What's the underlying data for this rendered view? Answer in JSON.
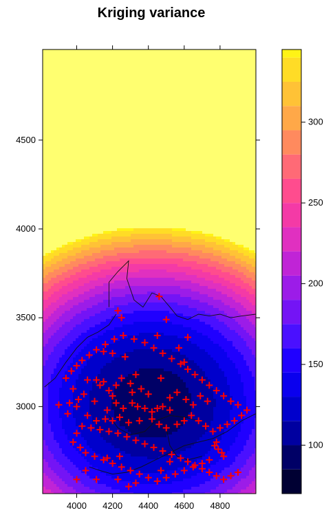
{
  "chart_data": {
    "type": "heatmap",
    "title": "Kriging variance",
    "xlabel": "",
    "ylabel": "",
    "xlim": [
      3810,
      5000
    ],
    "ylim": [
      2510,
      5010
    ],
    "x_ticks": [
      4000,
      4200,
      4400,
      4600,
      4800
    ],
    "y_ticks": [
      3000,
      3500,
      4000,
      4500
    ],
    "colorbar": {
      "ticks": [
        100,
        150,
        200,
        250,
        300
      ],
      "range": [
        70,
        345
      ],
      "levels": [
        70,
        85,
        100,
        115,
        130,
        145,
        160,
        175,
        190,
        205,
        220,
        235,
        250,
        265,
        280,
        295,
        310,
        325,
        340,
        345
      ],
      "colors": [
        "#000033",
        "#000066",
        "#0000A0",
        "#0000CC",
        "#0A00EE",
        "#2000FF",
        "#4A10FF",
        "#7414F5",
        "#9C1CE8",
        "#C024D6",
        "#E030C0",
        "#F43AA6",
        "#FF4C8E",
        "#FF6A76",
        "#FF8A5E",
        "#FFA848",
        "#FFC236",
        "#FFDC26",
        "#FFF316",
        "#FFFF70"
      ]
    },
    "sample_points_marker": "+",
    "sample_points_color": "#FF0000",
    "sample_points": [
      [
        4060,
        3150
      ],
      [
        4110,
        3150
      ],
      [
        4130,
        3120
      ],
      [
        4150,
        3140
      ],
      [
        4180,
        3090
      ],
      [
        4200,
        3060
      ],
      [
        4220,
        3120
      ],
      [
        4250,
        3160
      ],
      [
        4300,
        3130
      ],
      [
        4330,
        3180
      ],
      [
        4360,
        3100
      ],
      [
        4400,
        3070
      ],
      [
        4040,
        3070
      ],
      [
        4010,
        3040
      ],
      [
        4000,
        3000
      ],
      [
        4100,
        3030
      ],
      [
        4170,
        2980
      ],
      [
        4220,
        3020
      ],
      [
        4260,
        2990
      ],
      [
        4310,
        3020
      ],
      [
        4340,
        3000
      ],
      [
        4380,
        2990
      ],
      [
        4420,
        2970
      ],
      [
        4450,
        2990
      ],
      [
        4480,
        3000
      ],
      [
        4520,
        2980
      ],
      [
        4060,
        2950
      ],
      [
        4110,
        2920
      ],
      [
        4160,
        2930
      ],
      [
        4200,
        2920
      ],
      [
        4240,
        2940
      ],
      [
        4290,
        2910
      ],
      [
        4350,
        2920
      ],
      [
        4420,
        2930
      ],
      [
        4460,
        2900
      ],
      [
        4500,
        2880
      ],
      [
        4560,
        2900
      ],
      [
        4600,
        2920
      ],
      [
        4640,
        2950
      ],
      [
        4680,
        2920
      ],
      [
        4720,
        2890
      ],
      [
        4760,
        2860
      ],
      [
        4800,
        2880
      ],
      [
        4840,
        2900
      ],
      [
        4880,
        2920
      ],
      [
        4920,
        2950
      ],
      [
        4950,
        2980
      ],
      [
        4780,
        2800
      ],
      [
        4770,
        2780
      ],
      [
        4790,
        2760
      ],
      [
        4810,
        2740
      ],
      [
        4820,
        2720
      ],
      [
        4740,
        2700
      ],
      [
        4700,
        2680
      ],
      [
        4650,
        2660
      ],
      [
        4600,
        2640
      ],
      [
        4550,
        2620
      ],
      [
        4500,
        2600
      ],
      [
        4450,
        2580
      ],
      [
        4400,
        2600
      ],
      [
        4350,
        2620
      ],
      [
        4300,
        2640
      ],
      [
        4250,
        2660
      ],
      [
        4200,
        2680
      ],
      [
        4150,
        2700
      ],
      [
        4100,
        2720
      ],
      [
        4050,
        2740
      ],
      [
        4020,
        2770
      ],
      [
        3980,
        2800
      ],
      [
        4000,
        2850
      ],
      [
        4030,
        2890
      ],
      [
        4080,
        2880
      ],
      [
        4130,
        2870
      ],
      [
        4180,
        2860
      ],
      [
        4230,
        2850
      ],
      [
        4280,
        2830
      ],
      [
        4330,
        2810
      ],
      [
        4380,
        2790
      ],
      [
        4430,
        2770
      ],
      [
        4480,
        2750
      ],
      [
        4530,
        2730
      ],
      [
        4580,
        2710
      ],
      [
        4620,
        2690
      ],
      [
        4660,
        2670
      ],
      [
        4700,
        2650
      ],
      [
        4740,
        2630
      ],
      [
        4780,
        2610
      ],
      [
        4820,
        2590
      ],
      [
        4860,
        2610
      ],
      [
        4900,
        2630
      ],
      [
        3940,
        3160
      ],
      [
        3970,
        3200
      ],
      [
        4000,
        3230
      ],
      [
        4030,
        3260
      ],
      [
        4070,
        3290
      ],
      [
        4110,
        3320
      ],
      [
        4160,
        3350
      ],
      [
        4210,
        3380
      ],
      [
        4260,
        3400
      ],
      [
        4320,
        3380
      ],
      [
        4380,
        3360
      ],
      [
        4430,
        3330
      ],
      [
        4480,
        3300
      ],
      [
        4530,
        3270
      ],
      [
        4580,
        3240
      ],
      [
        4620,
        3210
      ],
      [
        4660,
        3180
      ],
      [
        4700,
        3150
      ],
      [
        4740,
        3120
      ],
      [
        4780,
        3090
      ],
      [
        4820,
        3060
      ],
      [
        4860,
        3030
      ],
      [
        4900,
        3010
      ],
      [
        4230,
        3540
      ],
      [
        4250,
        3500
      ],
      [
        4460,
        3620
      ],
      [
        4450,
        3400
      ],
      [
        4500,
        3490
      ],
      [
        4570,
        3330
      ],
      [
        4600,
        3250
      ],
      [
        4620,
        3390
      ],
      [
        4470,
        3160
      ],
      [
        4560,
        3080
      ],
      [
        4520,
        3050
      ],
      [
        4610,
        3040
      ],
      [
        4650,
        3010
      ],
      [
        4690,
        3060
      ],
      [
        4730,
        3030
      ],
      [
        4310,
        3080
      ],
      [
        4270,
        3280
      ],
      [
        4200,
        3300
      ],
      [
        4150,
        3310
      ],
      [
        3980,
        3100
      ],
      [
        3960,
        3020
      ],
      [
        3900,
        3010
      ],
      [
        3950,
        2960
      ],
      [
        4170,
        2710
      ],
      [
        4240,
        2720
      ],
      [
        4050,
        2640
      ],
      [
        4110,
        2590
      ],
      [
        4000,
        2590
      ],
      [
        4290,
        2550
      ],
      [
        4330,
        2570
      ],
      [
        4230,
        2590
      ],
      [
        4470,
        2640
      ],
      [
        4520,
        2690
      ]
    ],
    "grid": false,
    "legend": "right colorbar"
  }
}
